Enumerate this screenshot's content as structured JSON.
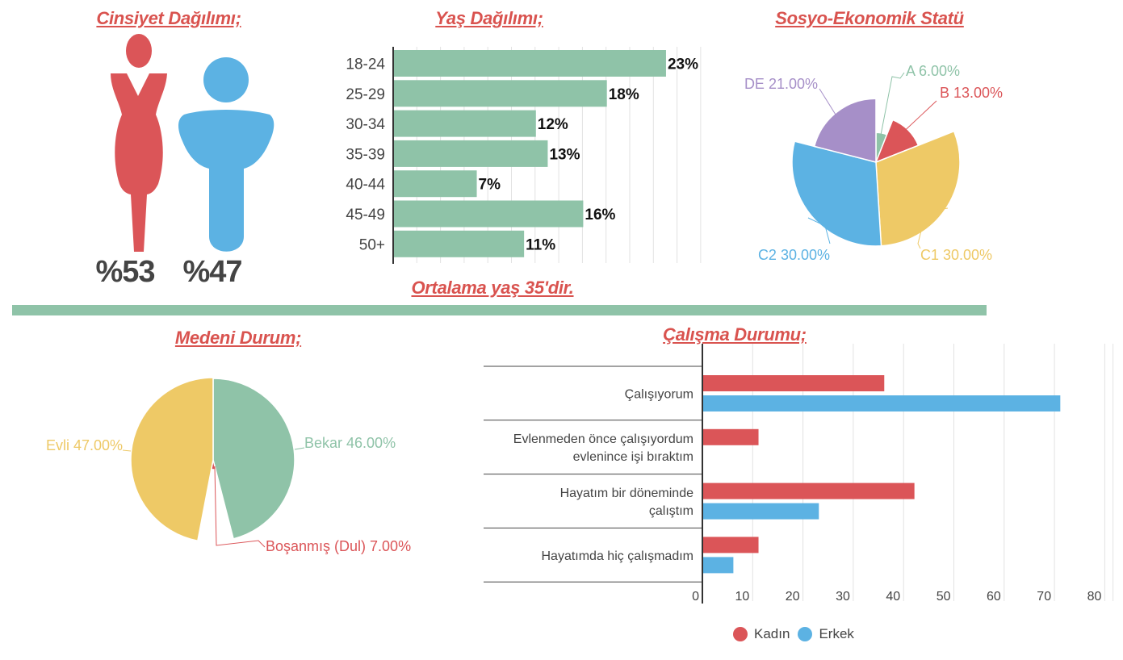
{
  "colors": {
    "title": "#d9534f",
    "female": "#db5558",
    "male": "#5cb2e3",
    "green": "#8fc3a8",
    "yellow": "#eec966",
    "purple": "#a68fc8",
    "divider": "#8fc3a8"
  },
  "gender": {
    "title": "Cinsiyet Dağılımı;",
    "female_pct": "%53",
    "male_pct": "%47",
    "female_icon": "woman-icon",
    "male_icon": "man-icon"
  },
  "average_age_note": "Ortalama yaş 35'dir.",
  "chart_data": [
    {
      "id": "age",
      "type": "bar",
      "orientation": "horizontal",
      "title": "Yaş Dağılımı;",
      "categories": [
        "18-24",
        "25-29",
        "30-34",
        "35-39",
        "40-44",
        "45-49",
        "50+"
      ],
      "values": [
        23,
        18,
        12,
        13,
        7,
        16,
        11
      ],
      "labels": [
        "23%",
        "18%",
        "12%",
        "13%",
        "7%",
        "16%",
        "11%"
      ],
      "xlim": [
        0,
        26
      ],
      "grid_step": 2,
      "grid": true
    },
    {
      "id": "ses",
      "type": "pie",
      "variant": "rose",
      "title": "Sosyo-Ekonomik Statü",
      "slices": [
        {
          "name": "A",
          "value": 6,
          "label": "A 6.00%",
          "color": "#8fc3a8"
        },
        {
          "name": "B",
          "value": 13,
          "label": "B 13.00%",
          "color": "#db5558"
        },
        {
          "name": "C1",
          "value": 30,
          "label": "C1 30.00%",
          "color": "#eec966"
        },
        {
          "name": "C2",
          "value": 30,
          "label": "C2 30.00%",
          "color": "#5cb2e3"
        },
        {
          "name": "DE",
          "value": 21,
          "label": "DE 21.00%",
          "color": "#a68fc8"
        }
      ]
    },
    {
      "id": "marital",
      "type": "pie",
      "variant": "rose",
      "title": "Medeni Durum;",
      "slices": [
        {
          "name": "Bekar",
          "value": 46,
          "label": "Bekar 46.00%",
          "color": "#8fc3a8"
        },
        {
          "name": "Boşanmış (Dul)",
          "value": 7,
          "label": "Boşanmış (Dul) 7.00%",
          "color": "#db5558"
        },
        {
          "name": "Evli",
          "value": 47,
          "label": "Evli 47.00%",
          "color": "#eec966"
        }
      ]
    },
    {
      "id": "employment",
      "type": "bar",
      "orientation": "horizontal",
      "title": "Çalışma Durumu;",
      "categories": [
        [
          "Çalışıyorum"
        ],
        [
          "Evlenmeden önce çalışıyordum",
          "evlenince işi bıraktım"
        ],
        [
          "Hayatım bir döneminde",
          "çalıştım"
        ],
        [
          "Hayatımda hiç çalışmadım"
        ]
      ],
      "series": [
        {
          "name": "Kadın",
          "color": "#db5558",
          "values": [
            36,
            11,
            42,
            11
          ]
        },
        {
          "name": "Erkek",
          "color": "#5cb2e3",
          "values": [
            71,
            0,
            23,
            6
          ]
        }
      ],
      "xticks": [
        "0",
        "10",
        "20",
        "30",
        "40",
        "50",
        "60",
        "70",
        "80"
      ],
      "xlim": [
        0,
        81
      ],
      "grid": true,
      "legend": "bottom"
    }
  ]
}
